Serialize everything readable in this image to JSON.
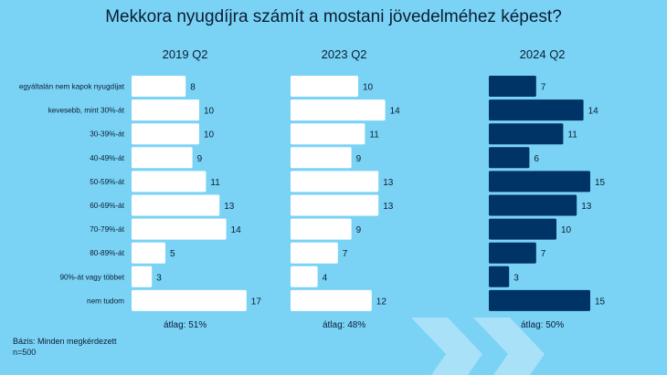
{
  "title": "Mekkora nyugdíjra számít a mostani jövedelméhez képest?",
  "base_note": "Bázis: Minden megkérdezett",
  "sample_size": "n=500",
  "colors": {
    "background": "#7ad3f5",
    "bar_light": "#ffffff",
    "bar_dark": "#003366",
    "decoration": "#a8e1f8",
    "text": "#0b1d33"
  },
  "chart_data": {
    "type": "bar",
    "orientation": "horizontal",
    "title": "Mekkora nyugdíjra számít a mostani jövedelméhez képest?",
    "categories": [
      "egyáltalán nem kapok nyugdíjat",
      "kevesebb, mint 30%-át",
      "30-39%-át",
      "40-49%-át",
      "50-59%-át",
      "60-69%-át",
      "70-79%-át",
      "80-89%-át",
      "90%-át vagy többet",
      "nem tudom"
    ],
    "series": [
      {
        "name": "2019 Q2",
        "values": [
          8,
          10,
          10,
          9,
          11,
          13,
          14,
          5,
          3,
          17
        ],
        "note": "átlag: 51%",
        "color": "#ffffff"
      },
      {
        "name": "2023 Q2",
        "values": [
          10,
          14,
          11,
          9,
          13,
          13,
          9,
          7,
          4,
          12
        ],
        "note": "átlag: 48%",
        "color": "#ffffff"
      },
      {
        "name": "2024 Q2",
        "values": [
          7,
          14,
          11,
          6,
          15,
          13,
          10,
          7,
          3,
          15
        ],
        "note": "átlag: 50%",
        "color": "#003366"
      }
    ],
    "grid": false,
    "data_labels": true
  }
}
